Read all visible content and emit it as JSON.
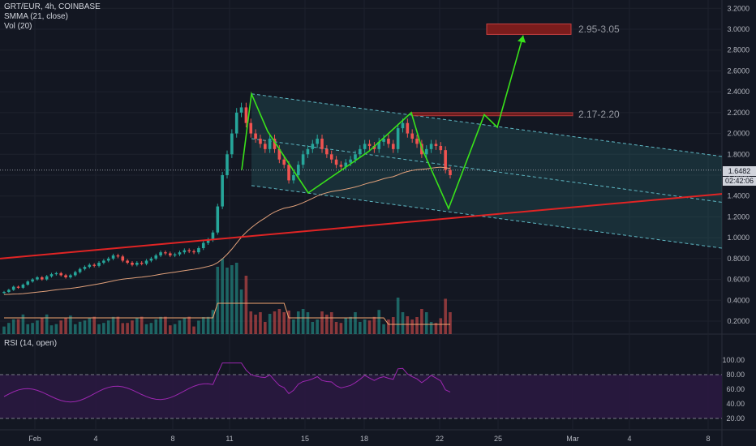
{
  "legend": {
    "symbol": "GRT/EUR, 4h, COINBASE",
    "smma": "SMMA (21, close)",
    "vol": "Vol (20)",
    "rsi": "RSI (14, open)"
  },
  "price_tag": "1.6482",
  "time_tag": "02:42:06",
  "colors": {
    "up": "#26a69a",
    "down": "#ef5350",
    "pattern": "#39e21a",
    "trendline": "#e02424",
    "channel": "#2a6e73",
    "rsi": "#9c27b0",
    "smma": "#f0a470"
  },
  "chart_data": [
    {
      "type": "candlestick",
      "x_labels": [
        "Feb",
        "4",
        "8",
        "11",
        "15",
        "18",
        "22",
        "25",
        "Mar",
        "4",
        "8"
      ],
      "y_ticks": [
        0.2,
        0.4,
        0.6,
        0.8,
        1.0,
        1.2,
        1.4,
        1.6,
        1.8,
        2.0,
        2.2,
        2.4,
        2.6,
        2.8,
        3.0,
        3.2
      ],
      "ylim": [
        0.1,
        3.25
      ],
      "close_series": [
        0.48,
        0.5,
        0.53,
        0.52,
        0.55,
        0.58,
        0.6,
        0.62,
        0.6,
        0.63,
        0.65,
        0.66,
        0.64,
        0.62,
        0.64,
        0.67,
        0.7,
        0.72,
        0.74,
        0.73,
        0.76,
        0.78,
        0.8,
        0.83,
        0.82,
        0.78,
        0.76,
        0.74,
        0.76,
        0.75,
        0.78,
        0.8,
        0.83,
        0.86,
        0.85,
        0.83,
        0.84,
        0.86,
        0.88,
        0.87,
        0.86,
        0.9,
        0.95,
        0.98,
        1.05,
        1.3,
        1.6,
        1.8,
        2.0,
        2.2,
        2.25,
        2.1,
        2.0,
        1.95,
        1.9,
        1.85,
        1.95,
        1.85,
        1.75,
        1.7,
        1.55,
        1.6,
        1.7,
        1.8,
        1.85,
        1.9,
        1.95,
        1.85,
        1.8,
        1.75,
        1.7,
        1.68,
        1.72,
        1.75,
        1.8,
        1.85,
        1.9,
        1.88,
        1.85,
        1.92,
        1.95,
        1.9,
        1.85,
        2.05,
        2.1,
        2.0,
        1.95,
        1.9,
        1.8,
        1.85,
        1.9,
        1.88,
        1.84,
        1.65,
        1.6
      ],
      "annotations": [
        "2.95-3.05",
        "2.17-2.20"
      ],
      "target_zones": [
        [
          2.95,
          3.05
        ],
        [
          2.17,
          2.2
        ]
      ],
      "trendline": {
        "start": 0.8,
        "end": 1.42
      },
      "channel": {
        "upper": [
          2.38,
          1.78
        ],
        "mid": [
          1.95,
          1.34
        ],
        "lower": [
          1.5,
          0.9
        ]
      },
      "pattern_points": [
        1.65,
        2.38,
        2.02,
        1.43,
        1.83,
        2.2,
        1.86,
        1.28,
        2.18,
        2.06,
        2.94
      ],
      "current_price": 1.6482
    },
    {
      "type": "bar",
      "title": "Vol (20)"
    },
    {
      "type": "line",
      "title": "RSI (14, open)",
      "y_ticks": [
        20,
        40,
        60,
        80,
        100
      ],
      "ylim": [
        10,
        100
      ],
      "band": [
        20,
        80
      ]
    }
  ]
}
